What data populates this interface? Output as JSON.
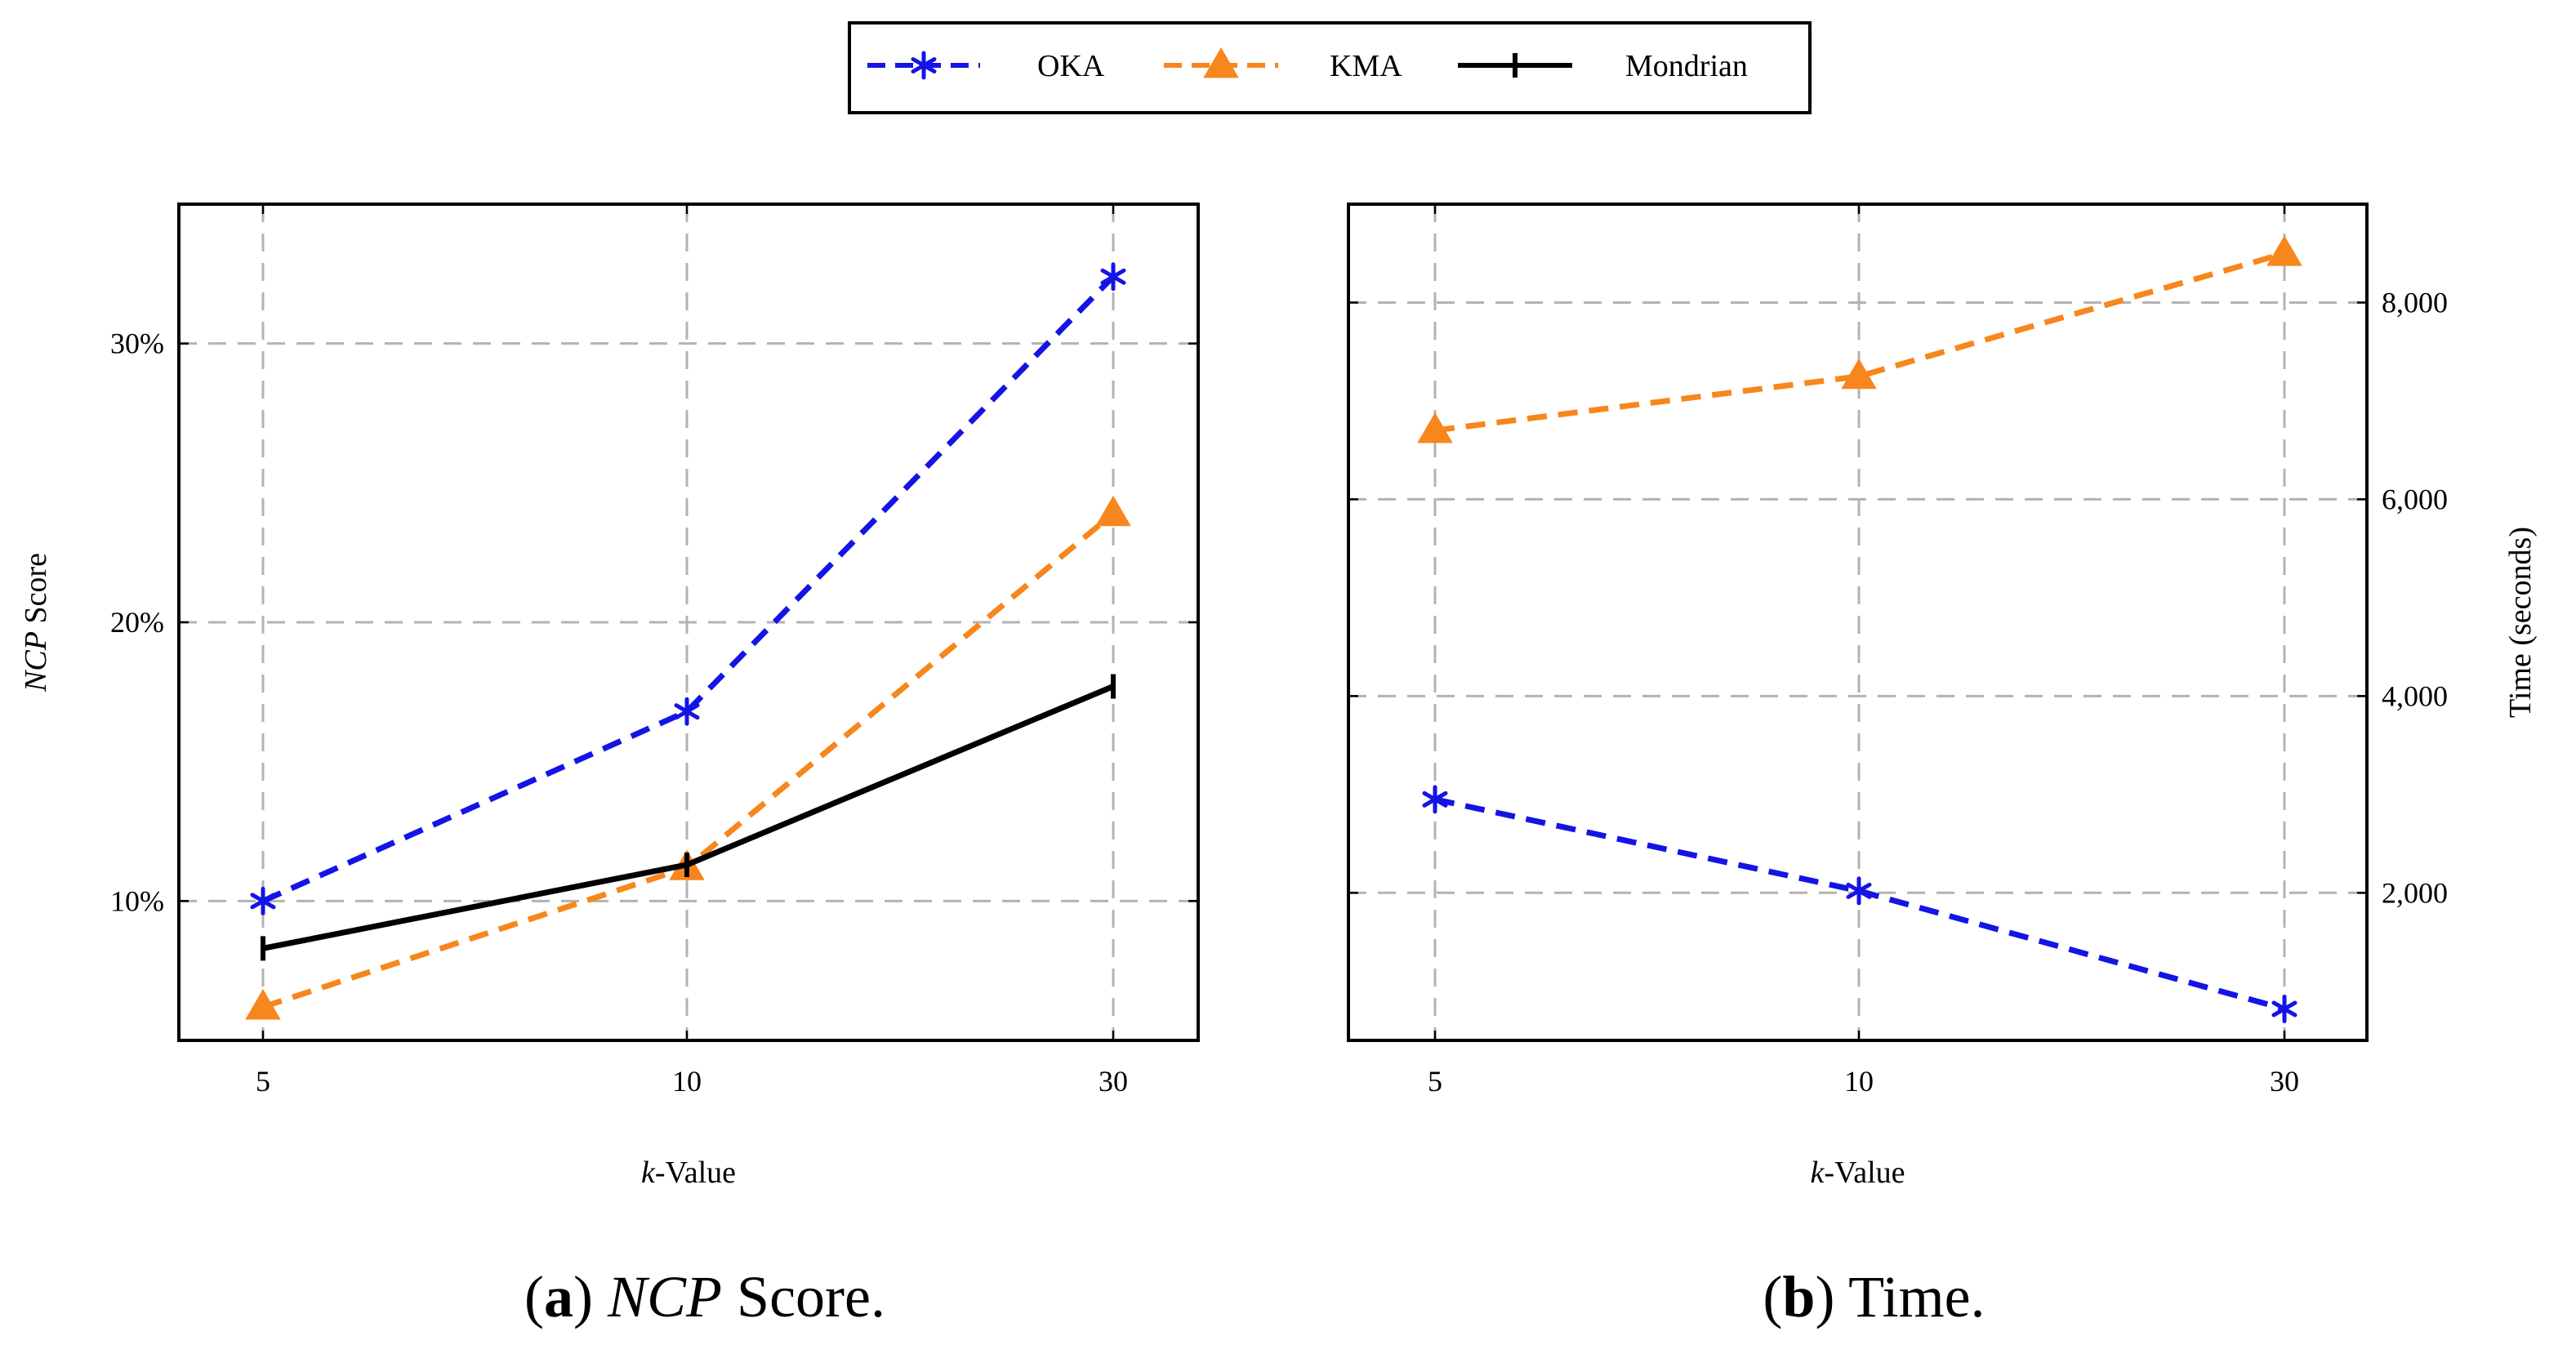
{
  "legend": [
    {
      "name": "OKA",
      "color": "#1414e6",
      "marker": "asterisk",
      "dashed": true
    },
    {
      "name": "KMA",
      "color": "#f7861c",
      "marker": "triangle",
      "dashed": true
    },
    {
      "name": "Mondrian",
      "color": "#000000",
      "marker": "bar",
      "dashed": false
    }
  ],
  "chart_data": [
    {
      "type": "line",
      "caption_letter": "a",
      "caption_rest": " Score.",
      "caption_italic": "NCP",
      "categories": [
        "5",
        "10",
        "30"
      ],
      "xlabel_italic": "k",
      "xlabel_rest": "-Value",
      "ylabel_italic": "NCP",
      "ylabel_rest": " Score",
      "ylim": [
        5,
        35
      ],
      "yticks": [
        10,
        20,
        30
      ],
      "ytick_labels": [
        "10%",
        "20%",
        "30%"
      ],
      "y_axis_side": "left",
      "series": [
        {
          "name": "OKA",
          "values": [
            10.0,
            16.8,
            32.4
          ]
        },
        {
          "name": "KMA",
          "values": [
            6.2,
            11.2,
            23.9
          ]
        },
        {
          "name": "Mondrian",
          "values": [
            8.3,
            11.3,
            17.7
          ]
        }
      ]
    },
    {
      "type": "line",
      "caption_letter": "b",
      "caption_rest": " Time.",
      "caption_italic": "",
      "categories": [
        "5",
        "10",
        "30"
      ],
      "xlabel_italic": "k",
      "xlabel_rest": "-Value",
      "ylabel_italic": "",
      "ylabel_rest": "Time (seconds)",
      "ylim": [
        500,
        9000
      ],
      "yticks": [
        2000,
        4000,
        6000,
        8000
      ],
      "ytick_labels": [
        "2,000",
        "4,000",
        "6,000",
        "8,000"
      ],
      "y_axis_side": "right",
      "series": [
        {
          "name": "OKA",
          "values": [
            2950,
            2020,
            820
          ]
        },
        {
          "name": "KMA",
          "values": [
            6700,
            7250,
            8500
          ]
        }
      ]
    }
  ]
}
